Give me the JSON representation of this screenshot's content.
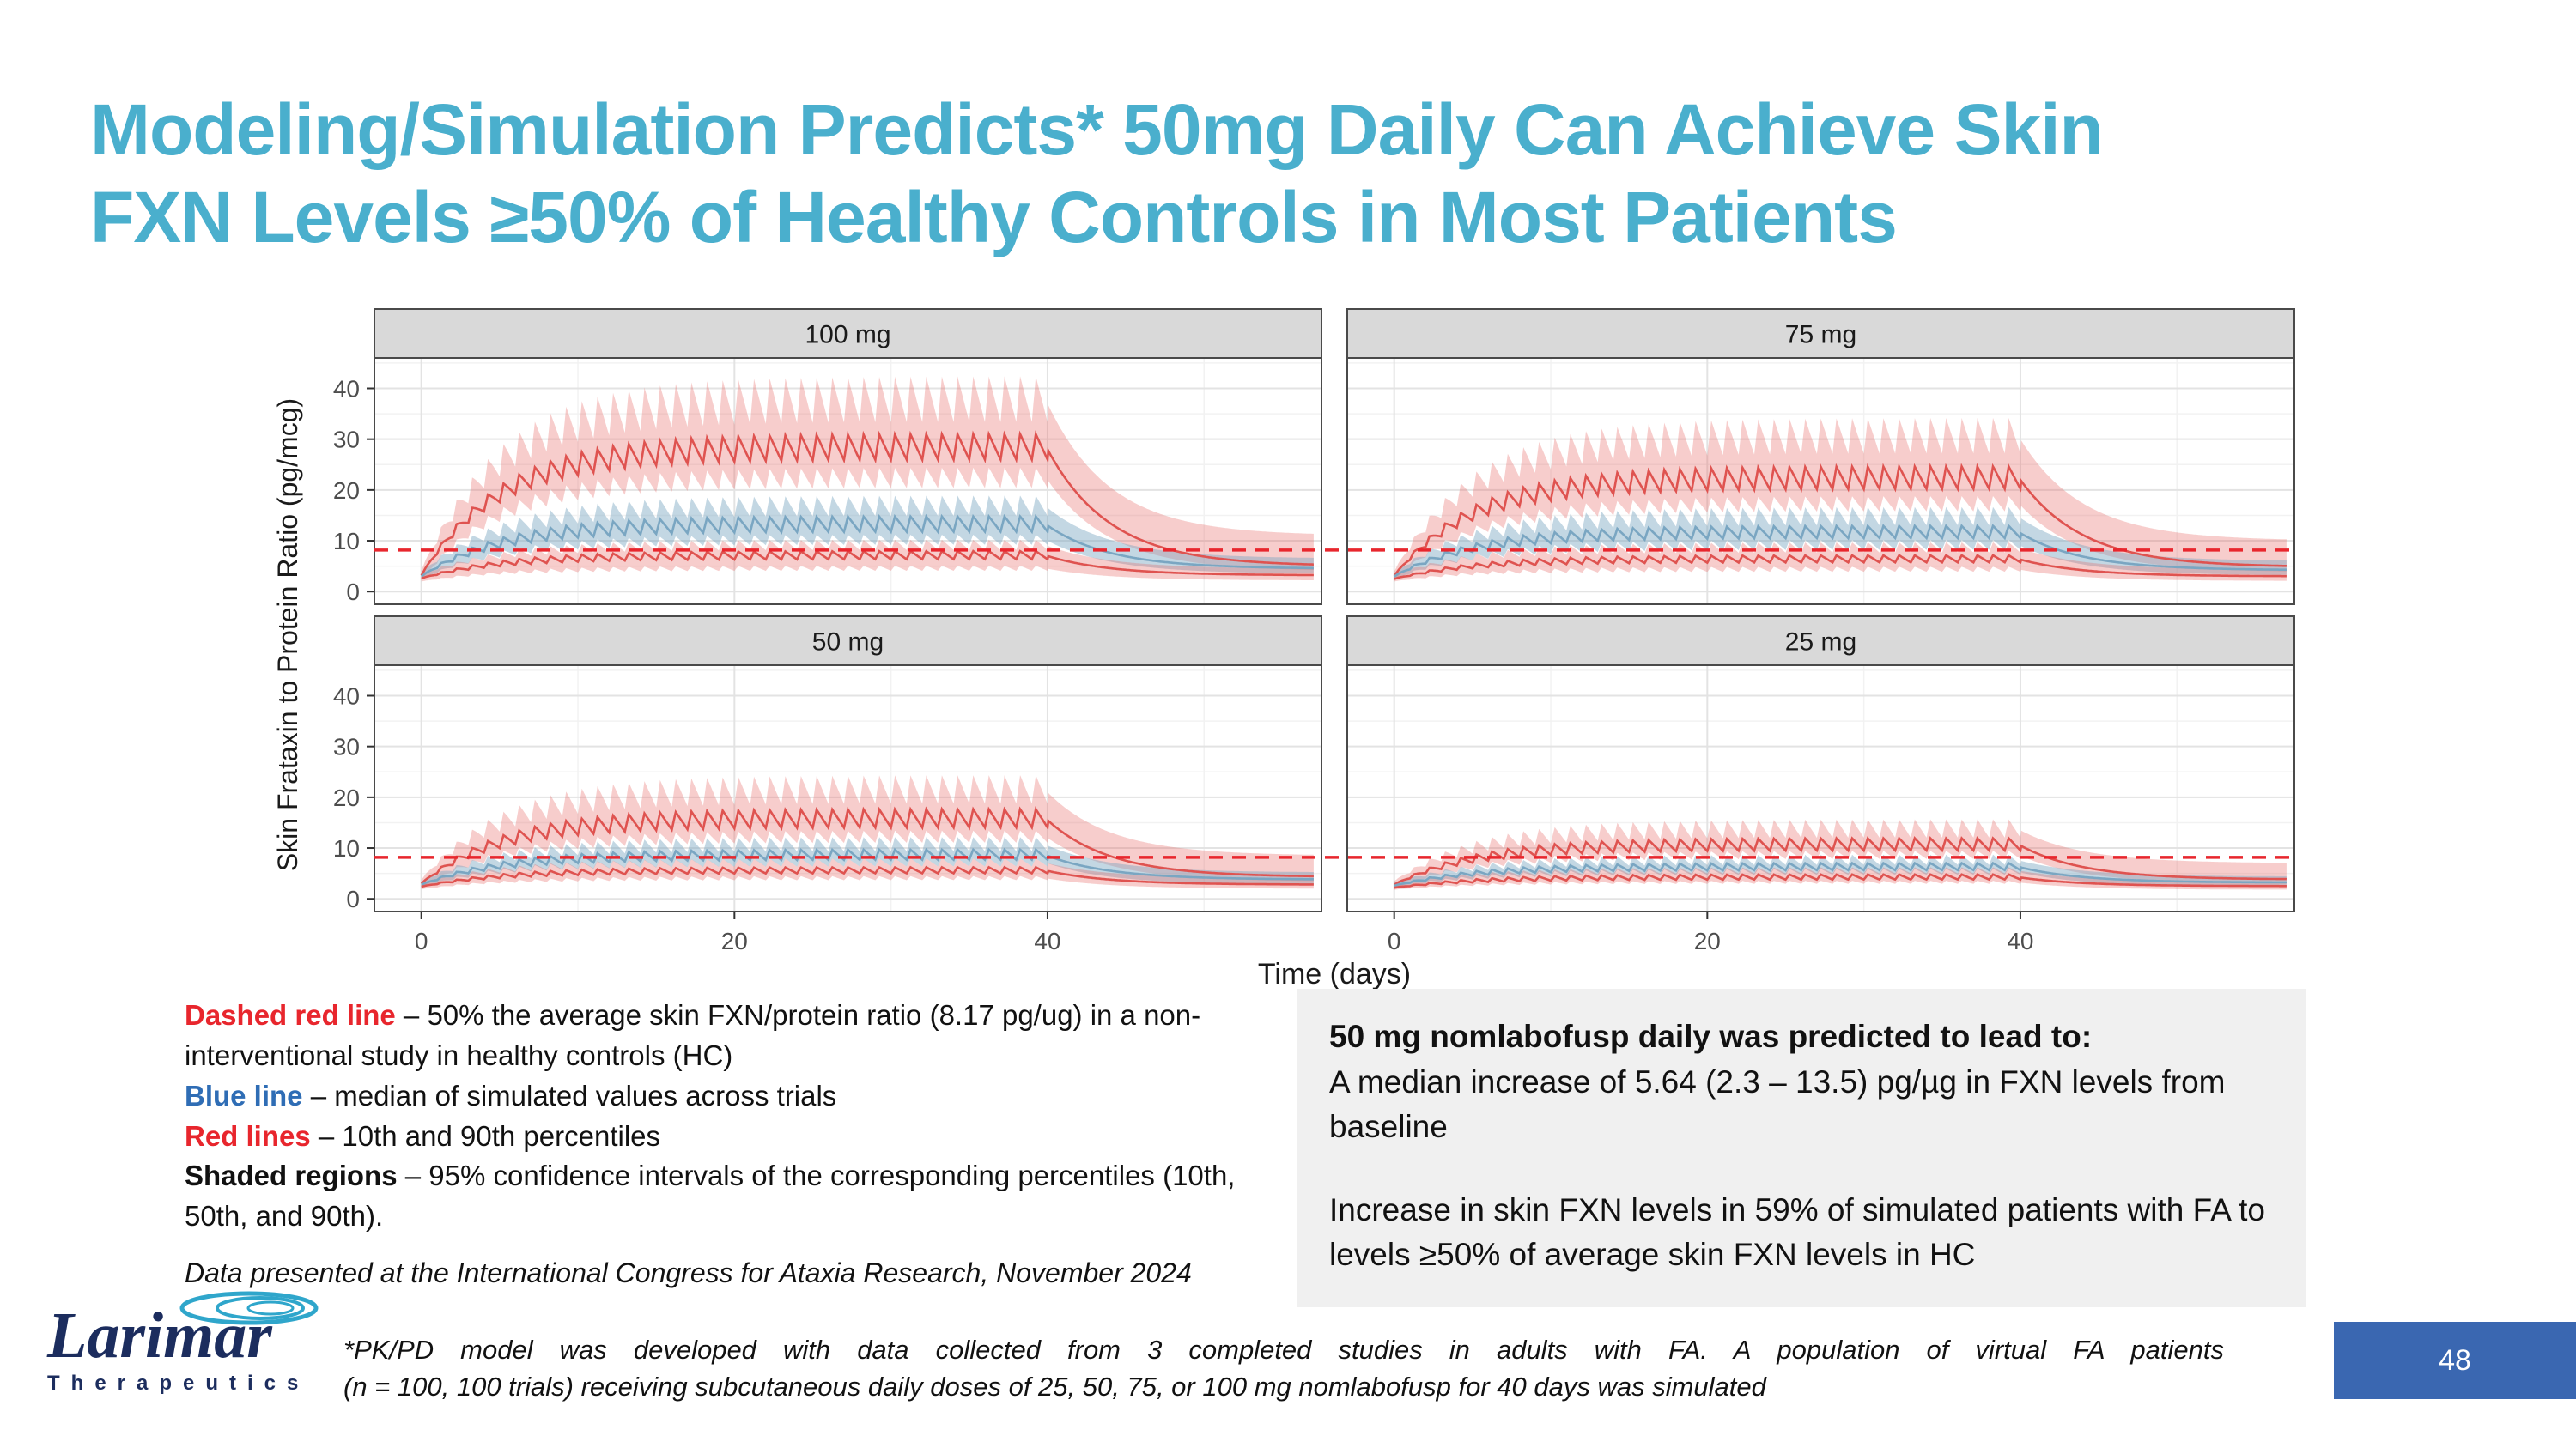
{
  "slide": {
    "title_line1": "Modeling/Simulation Predicts* 50mg Daily Can Achieve Skin",
    "title_line2": "FXN Levels ≥50% of Healthy Controls in Most Patients",
    "page_number": "48"
  },
  "palette": {
    "title_teal": "#4aafcd",
    "dashed_red": "#e8262d",
    "legend_blue": "#2f6db5",
    "page_box_blue": "#3a67b1",
    "callout_bg": "#f0f0f0"
  },
  "legend": {
    "entries": [
      {
        "label": "Dashed red line",
        "text": " – 50% the average skin FXN/protein ratio (8.17 pg/ug) in a non-interventional study in healthy controls (HC)"
      },
      {
        "label": "Blue line",
        "text": " – median of simulated values across trials"
      },
      {
        "label": "Red lines",
        "text": " – 10th and 90th percentiles"
      },
      {
        "label": "Shaded regions",
        "text": " – 95% confidence intervals of the corresponding percentiles (10th, 50th, and 90th)."
      }
    ],
    "citation": "Data presented at the International Congress for Ataxia Research, November 2024"
  },
  "callout": {
    "heading": "50 mg nomlabofusp daily was predicted to lead to:",
    "line1": "A median increase of 5.64 (2.3 – 13.5) pg/µg in FXN levels from baseline",
    "line2": "Increase in skin FXN levels in 59% of simulated patients with FA  to levels ≥50% of average skin FXN levels in HC"
  },
  "footnote": {
    "line1": "*PK/PD model was developed with data collected from 3 completed studies in adults with FA. A population of virtual FA patients",
    "line2": "(n = 100, 100 trials) receiving subcutaneous daily doses of 25, 50, 75, or 100 mg nomlabofusp for 40 days was simulated"
  },
  "logo": {
    "name": "Larimar",
    "subtitle": "Therapeutics"
  },
  "chart_data": {
    "type": "line",
    "title": "",
    "xlabel": "Time (days)",
    "ylabel": "Skin Frataxin to Protein Ratio (pg/mcg)",
    "xticks": [
      0,
      20,
      40
    ],
    "yticks": [
      0,
      10,
      20,
      30,
      40
    ],
    "xlim": [
      -3,
      57.5
    ],
    "ylim": [
      -2.5,
      46
    ],
    "grid": true,
    "dosing_duration_days": 40,
    "reference_line": {
      "y": 8.17,
      "style": "dashed",
      "color": "#e8262d",
      "meaning": "50% of the average skin FXN/protein ratio (8.17 pg/ug) in healthy controls"
    },
    "colors": {
      "median": "#7aa6c2",
      "percentile": "#df5350",
      "median_band": "rgba(122,166,194,0.45)",
      "percentile_band": "rgba(230,100,95,0.32)"
    },
    "series_meaning": {
      "median_line": "median of simulated values across trials",
      "p10_line": "10th percentile",
      "p90_line": "90th percentile",
      "bands": "95% confidence intervals of the 10th, 50th and 90th percentiles"
    },
    "facets": [
      {
        "label": "100 mg",
        "series": [
          {
            "name": "p90_ci_band",
            "type": "band",
            "color": "percentile_band",
            "hi": {
              "start": 4.2,
              "plateau": 37,
              "amp": 4.5,
              "end": 11
            },
            "lo": {
              "start": 2.2,
              "plateau": 22,
              "amp": 2.0,
              "end": 4
            }
          },
          {
            "name": "median_ci_band",
            "type": "band",
            "color": "median_band",
            "hi": {
              "start": 3.8,
              "plateau": 16.5,
              "amp": 2.0,
              "end": 6.5
            },
            "lo": {
              "start": 2.4,
              "plateau": 10,
              "amp": 1.0,
              "end": 3.5
            }
          },
          {
            "name": "p10_ci_band",
            "type": "band",
            "color": "percentile_band",
            "hi": {
              "start": 3.4,
              "plateau": 9,
              "amp": 1.0,
              "end": 4.5
            },
            "lo": {
              "start": 2.0,
              "plateau": 4.5,
              "amp": 0.5,
              "end": 2.2
            }
          },
          {
            "name": "p90_line",
            "type": "line",
            "color": "percentile",
            "start": 3.2,
            "plateau": 28,
            "amp": 2.5,
            "end": 5
          },
          {
            "name": "median_line",
            "type": "line",
            "color": "median",
            "start": 3.0,
            "plateau": 13,
            "amp": 1.5,
            "end": 4.5
          },
          {
            "name": "p10_line",
            "type": "line",
            "color": "percentile",
            "start": 2.6,
            "plateau": 7,
            "amp": 0.8,
            "end": 3.2
          }
        ]
      },
      {
        "label": "75 mg",
        "series": [
          {
            "name": "p90_ci_band",
            "type": "band",
            "color": "percentile_band",
            "hi": {
              "start": 4.0,
              "plateau": 30,
              "amp": 3.5,
              "end": 10
            },
            "lo": {
              "start": 2.2,
              "plateau": 17,
              "amp": 1.5,
              "end": 3.8
            }
          },
          {
            "name": "median_ci_band",
            "type": "band",
            "color": "median_band",
            "hi": {
              "start": 3.7,
              "plateau": 14.5,
              "amp": 1.8,
              "end": 6
            },
            "lo": {
              "start": 2.4,
              "plateau": 9,
              "amp": 1.0,
              "end": 3.2
            }
          },
          {
            "name": "p10_ci_band",
            "type": "band",
            "color": "percentile_band",
            "hi": {
              "start": 3.3,
              "plateau": 8.5,
              "amp": 1.0,
              "end": 4.3
            },
            "lo": {
              "start": 2.0,
              "plateau": 4.3,
              "amp": 0.5,
              "end": 2.1
            }
          },
          {
            "name": "p90_line",
            "type": "line",
            "color": "percentile",
            "start": 3.1,
            "plateau": 22,
            "amp": 2.2,
            "end": 4.8
          },
          {
            "name": "median_line",
            "type": "line",
            "color": "median",
            "start": 3.0,
            "plateau": 11.5,
            "amp": 1.2,
            "end": 4.2
          },
          {
            "name": "p10_line",
            "type": "line",
            "color": "percentile",
            "start": 2.5,
            "plateau": 6.3,
            "amp": 0.7,
            "end": 3.0
          }
        ]
      },
      {
        "label": "50 mg",
        "series": [
          {
            "name": "p90_ci_band",
            "type": "band",
            "color": "percentile_band",
            "hi": {
              "start": 3.8,
              "plateau": 21,
              "amp": 2.8,
              "end": 8.5
            },
            "lo": {
              "start": 2.1,
              "plateau": 12,
              "amp": 1.2,
              "end": 3.4
            }
          },
          {
            "name": "median_ci_band",
            "type": "band",
            "color": "median_band",
            "hi": {
              "start": 3.5,
              "plateau": 10.5,
              "amp": 1.4,
              "end": 5.2
            },
            "lo": {
              "start": 2.3,
              "plateau": 7,
              "amp": 0.8,
              "end": 2.8
            }
          },
          {
            "name": "p10_ci_band",
            "type": "band",
            "color": "percentile_band",
            "hi": {
              "start": 3.1,
              "plateau": 7,
              "amp": 0.8,
              "end": 4.0
            },
            "lo": {
              "start": 1.9,
              "plateau": 4,
              "amp": 0.4,
              "end": 2.0
            }
          },
          {
            "name": "p90_line",
            "type": "line",
            "color": "percentile",
            "start": 3.0,
            "plateau": 15.5,
            "amp": 1.8,
            "end": 4.3
          },
          {
            "name": "median_line",
            "type": "line",
            "color": "median",
            "start": 2.8,
            "plateau": 8.5,
            "amp": 1.0,
            "end": 3.8
          },
          {
            "name": "p10_line",
            "type": "line",
            "color": "percentile",
            "start": 2.4,
            "plateau": 5.5,
            "amp": 0.6,
            "end": 2.8
          }
        ]
      },
      {
        "label": "25 mg",
        "series": [
          {
            "name": "p90_ci_band",
            "type": "band",
            "color": "percentile_band",
            "hi": {
              "start": 3.5,
              "plateau": 13.5,
              "amp": 1.8,
              "end": 7
            },
            "lo": {
              "start": 2.0,
              "plateau": 8.5,
              "amp": 0.8,
              "end": 3.0
            }
          },
          {
            "name": "median_ci_band",
            "type": "band",
            "color": "median_band",
            "hi": {
              "start": 3.2,
              "plateau": 7.5,
              "amp": 1.0,
              "end": 4.4
            },
            "lo": {
              "start": 2.2,
              "plateau": 5.2,
              "amp": 0.6,
              "end": 2.4
            }
          },
          {
            "name": "p10_ci_band",
            "type": "band",
            "color": "percentile_band",
            "hi": {
              "start": 2.9,
              "plateau": 5.5,
              "amp": 0.6,
              "end": 3.4
            },
            "lo": {
              "start": 1.8,
              "plateau": 3.2,
              "amp": 0.3,
              "end": 1.8
            }
          },
          {
            "name": "p90_line",
            "type": "line",
            "color": "percentile",
            "start": 2.8,
            "plateau": 10.5,
            "amp": 1.2,
            "end": 3.8
          },
          {
            "name": "median_line",
            "type": "line",
            "color": "median",
            "start": 2.6,
            "plateau": 6.2,
            "amp": 0.7,
            "end": 3.2
          },
          {
            "name": "p10_line",
            "type": "line",
            "color": "percentile",
            "start": 2.2,
            "plateau": 4.2,
            "amp": 0.5,
            "end": 2.5
          }
        ]
      }
    ]
  }
}
